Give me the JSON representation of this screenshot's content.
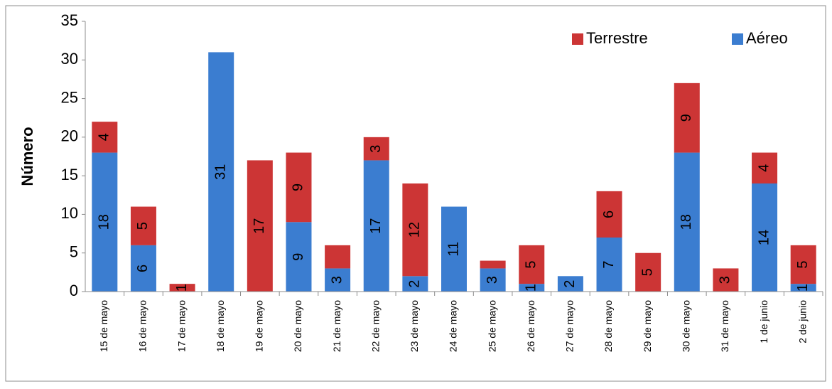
{
  "chart_data": {
    "type": "stacked_bar",
    "y_label": "Número",
    "categories": [
      "15 de mayo",
      "16 de mayo",
      "17 de mayo",
      "18 de mayo",
      "19 de mayo",
      "20 de mayo",
      "21 de mayo",
      "22 de mayo",
      "23 de mayo",
      "24 de mayo",
      "25 de mayo",
      "26 de mayo",
      "27 de mayo",
      "28 de mayo",
      "29 de mayo",
      "30 de mayo",
      "31 de mayo",
      "1 de junio",
      "2 de junio"
    ],
    "series": [
      {
        "name": "Aéreo",
        "color": "#3b7dd0",
        "values": [
          18,
          6,
          0,
          31,
          0,
          9,
          3,
          17,
          2,
          11,
          3,
          1,
          2,
          7,
          0,
          18,
          0,
          14,
          1
        ],
        "value_labels": [
          "18",
          "6",
          null,
          "31",
          null,
          "9",
          "3",
          "17",
          "2",
          "11",
          "3",
          "1",
          "2",
          "7",
          null,
          "18",
          null,
          "14",
          "1"
        ]
      },
      {
        "name": "Terrestre",
        "color": "#cc3535",
        "values": [
          4,
          5,
          1,
          0,
          17,
          9,
          3,
          3,
          12,
          0,
          1,
          5,
          0,
          6,
          5,
          9,
          3,
          4,
          5
        ],
        "value_labels": [
          "4",
          "5",
          "1",
          null,
          "17",
          "9",
          null,
          "3",
          "12",
          null,
          null,
          "5",
          null,
          "6",
          "5",
          "9",
          "3",
          "4",
          "5"
        ]
      }
    ],
    "ylim": [
      0,
      35
    ],
    "yticks": [
      0,
      5,
      10,
      15,
      20,
      25,
      30,
      35
    ],
    "grid": false,
    "legend": "top-right"
  }
}
